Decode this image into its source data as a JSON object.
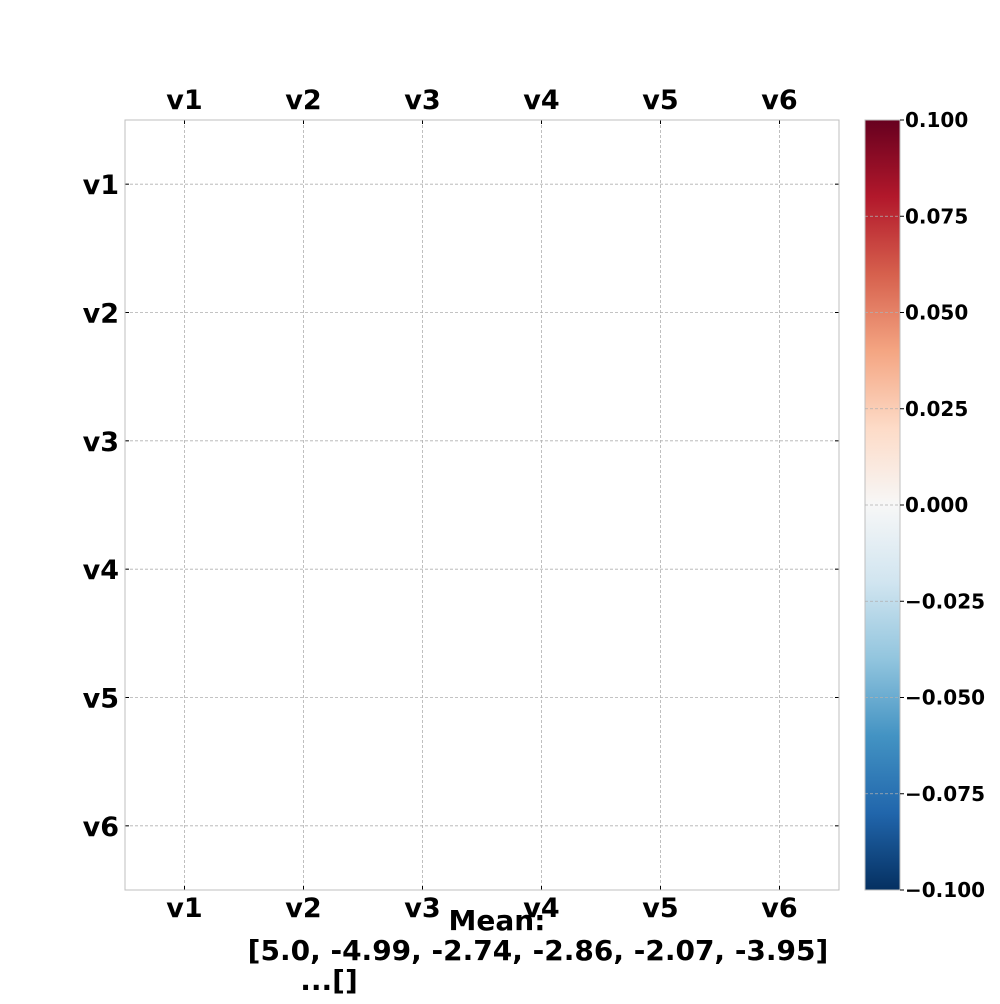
{
  "chart_data": {
    "type": "heatmap",
    "title": "",
    "x_labels": [
      "v1",
      "v2",
      "v3",
      "v4",
      "v5",
      "v6"
    ],
    "y_labels": [
      "v1",
      "v2",
      "v3",
      "v4",
      "v5",
      "v6"
    ],
    "values": [],
    "grid": true,
    "colormap": "RdBu_r",
    "colorbar": {
      "min": -0.1,
      "max": 0.1,
      "ticks": [
        0.1,
        0.075,
        0.05,
        0.025,
        0.0,
        -0.025,
        -0.05,
        -0.075,
        -0.1
      ],
      "tick_labels": [
        "0.100",
        "0.075",
        "0.050",
        "0.025",
        "0.000",
        "−0.025",
        "−0.050",
        "−0.075",
        "−0.100"
      ],
      "placement": "right"
    },
    "annotation_lines": [
      "Mean:",
      "[5.0, -4.99, -2.74, -2.86, -2.07, -3.95]",
      "...[]"
    ],
    "colors": {
      "grid": "#b0b0b0",
      "frame": "#bfbfbf",
      "cmap_stops": [
        "#67001f",
        "#b2182b",
        "#d6604d",
        "#f4a582",
        "#fddbc7",
        "#f7f7f7",
        "#d1e5f0",
        "#92c5de",
        "#4393c3",
        "#2166ac",
        "#053061"
      ]
    }
  }
}
